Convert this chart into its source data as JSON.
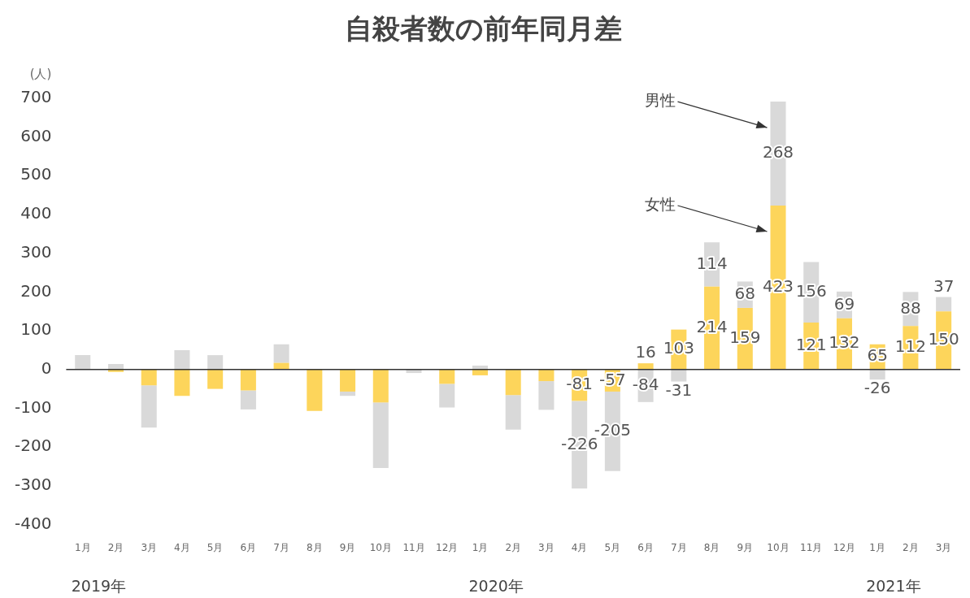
{
  "chart_data": {
    "type": "bar",
    "title": "自殺者数の前年同月差",
    "ylabel": "(人)",
    "categories": [
      "1月",
      "2月",
      "3月",
      "4月",
      "5月",
      "6月",
      "7月",
      "8月",
      "9月",
      "10月",
      "11月",
      "12月",
      "1月",
      "2月",
      "3月",
      "4月",
      "5月",
      "6月",
      "7月",
      "8月",
      "9月",
      "10月",
      "11月",
      "12月",
      "1月",
      "2月",
      "3月"
    ],
    "series": [
      {
        "name": "女性",
        "color": "#fdd55b",
        "values": [
          null,
          -6,
          -41,
          -68,
          -50,
          -54,
          17,
          -107,
          -57,
          -85,
          null,
          -37,
          -15,
          -66,
          -30,
          -81,
          -57,
          16,
          103,
          214,
          159,
          423,
          121,
          132,
          65,
          112,
          150
        ],
        "value_labels": [
          null,
          null,
          null,
          null,
          null,
          null,
          null,
          null,
          null,
          null,
          null,
          null,
          null,
          null,
          null,
          "-81",
          "-57",
          "16",
          "103",
          "214",
          "159",
          "423",
          "121",
          "132",
          "65",
          "112",
          "150"
        ]
      },
      {
        "name": "男性",
        "color": "#d9d9d9",
        "values": [
          37,
          14,
          -109,
          50,
          37,
          -49,
          48,
          0,
          -11,
          -169,
          -9,
          -61,
          10,
          -89,
          -74,
          -226,
          -205,
          -84,
          -31,
          114,
          68,
          268,
          156,
          69,
          -26,
          88,
          37
        ],
        "value_labels": [
          null,
          null,
          null,
          null,
          null,
          null,
          null,
          null,
          null,
          null,
          null,
          null,
          null,
          null,
          null,
          "-226",
          "-205",
          "-84",
          "-31",
          "114",
          "68",
          "268",
          "156",
          "69",
          "-26",
          "88",
          "37"
        ]
      }
    ],
    "stacked": true,
    "legend": false,
    "grid": false,
    "ylim": [
      -400,
      700
    ],
    "yticks": [
      -400,
      -300,
      -200,
      -100,
      0,
      100,
      200,
      300,
      400,
      500,
      600,
      700
    ],
    "ref_lines": [
      {
        "axis": "y",
        "value": 0,
        "color": "#333333"
      }
    ],
    "annotations": [
      "2019年",
      "2020年",
      "2021年"
    ]
  }
}
